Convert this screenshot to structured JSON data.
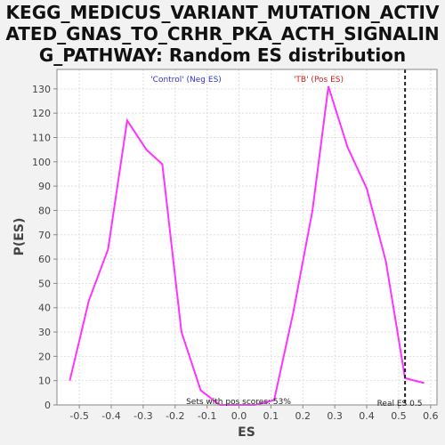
{
  "title_lines": [
    "KEGG_MEDICUS_VARIANT_MUTATION_ACTIV",
    "ATED_GNAS_TO_CRHR_PKA_ACTH_SIGNALIN",
    "G_PATHWAY: Random ES distribution"
  ],
  "colors": {
    "line": "#ff33ff",
    "control_label": "#3333cc",
    "tb_label": "#cc2222",
    "plot_bg": "#ffffff",
    "grid": "#dddddd",
    "frame": "#888888"
  },
  "chart_data": {
    "type": "line",
    "title": "KEGG_MEDICUS_VARIANT_MUTATION_ACTIVATED_GNAS_TO_CRHR_PKA_ACTH_SIGNALING_PATHWAY: Random ES distribution",
    "xlabel": "ES",
    "ylabel": "P(ES)",
    "xlim": [
      -0.57,
      0.62
    ],
    "ylim": [
      0,
      138
    ],
    "xticks": [
      -0.5,
      -0.4,
      -0.3,
      -0.2,
      -0.1,
      0.0,
      0.1,
      0.2,
      0.3,
      0.4,
      0.5,
      0.6
    ],
    "xtick_labels": [
      "-0.5",
      "-0.4",
      "-0.3",
      "-0.2",
      "-0.1",
      "0.0",
      "0.1",
      "0.2",
      "0.3",
      "0.4",
      "0.5",
      "0.6"
    ],
    "yticks": [
      0,
      10,
      20,
      30,
      40,
      50,
      60,
      70,
      80,
      90,
      100,
      110,
      120,
      130
    ],
    "ytick_labels": [
      "0",
      "10",
      "20",
      "30",
      "40",
      "50",
      "60",
      "70",
      "80",
      "90",
      "100",
      "110",
      "120",
      "130"
    ],
    "grid": true,
    "series": [
      {
        "x": [
          -0.53,
          -0.47,
          -0.41,
          -0.35,
          -0.29,
          -0.24,
          -0.18,
          -0.12,
          -0.06,
          0.0,
          0.05,
          0.11,
          0.17,
          0.23,
          0.28,
          0.34,
          0.4,
          0.46,
          0.52,
          0.58
        ],
        "y": [
          10,
          43,
          64,
          117,
          105,
          99,
          30,
          6,
          0,
          0,
          0,
          2,
          38,
          80,
          131,
          106,
          89,
          59,
          11,
          9
        ]
      }
    ],
    "real_es": 0.52,
    "annotations": {
      "neg_label": "'Control' (Neg ES)",
      "pos_label": "'TB' (Pos ES)",
      "pos_scores": "Sets with pos scores: 53%",
      "real_es": "Real ES 0.5"
    }
  }
}
